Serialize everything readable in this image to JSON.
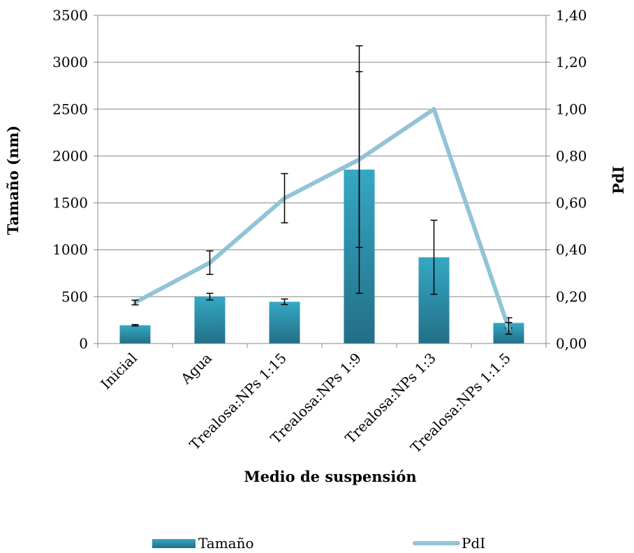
{
  "chart_data": {
    "type": "bar",
    "categories": [
      "Inicial",
      "Agua",
      "Trealosa:NPs 1:15",
      "Trealosa:NPs 1:9",
      "Trealosa:NPs 1:3",
      "Trealosa:NPs 1:1.5"
    ],
    "series": [
      {
        "name": "Tamaño",
        "type": "bar",
        "axis": "left",
        "color": "#2e8fa8",
        "values": [
          195,
          500,
          445,
          1855,
          920,
          220
        ],
        "error": [
          8,
          35,
          30,
          1320,
          395,
          55
        ]
      },
      {
        "name": "PdI",
        "type": "line",
        "axis": "right",
        "color": "#92c3d6",
        "values": [
          0.175,
          0.345,
          0.62,
          0.785,
          1.0,
          0.065
        ],
        "error": [
          0.01,
          0.05,
          0.105,
          0.375,
          0.0,
          0.025
        ]
      }
    ],
    "xlabel": "Medio de suspensión",
    "ylabel": "Tamaño (nm)",
    "y2label": "PdI",
    "ylim": [
      0,
      3500
    ],
    "y2lim": [
      0,
      1.4
    ],
    "yticks": [
      "0",
      "500",
      "1000",
      "1500",
      "2000",
      "2500",
      "3000",
      "3500"
    ],
    "y2ticks": [
      "0,00",
      "0,20",
      "0,40",
      "0,60",
      "0,80",
      "1,00",
      "1,20",
      "1,40"
    ],
    "grid": true,
    "legend": "bottom"
  }
}
